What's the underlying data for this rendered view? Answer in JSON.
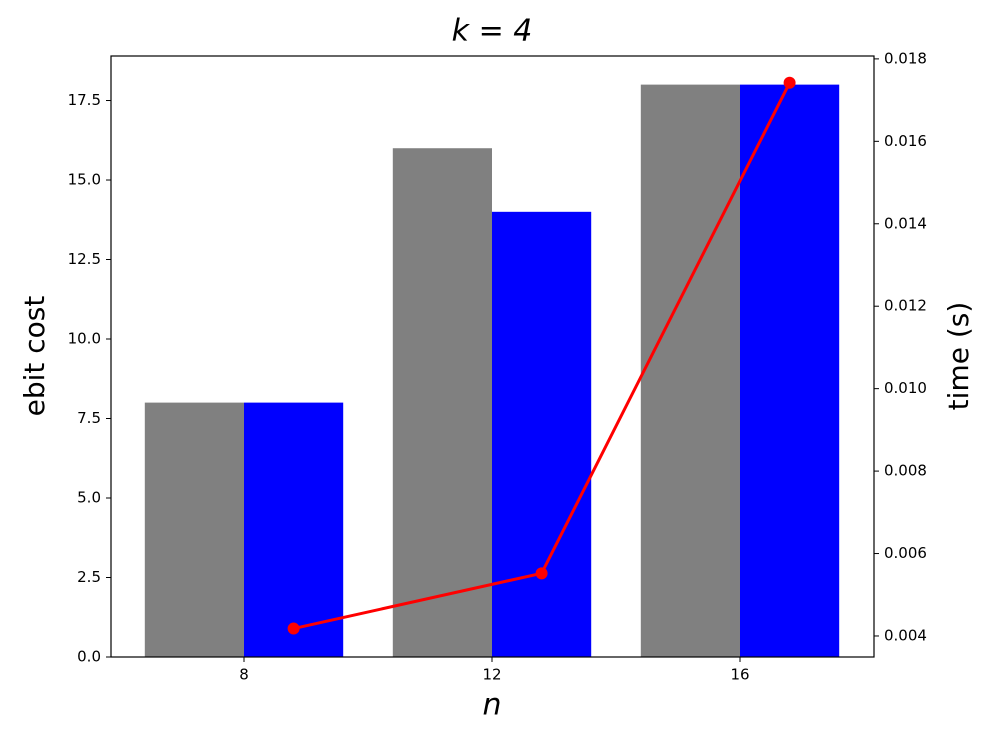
{
  "chart_data": {
    "type": "bar",
    "title": "k = 4",
    "x_label": "n",
    "y_label": "ebit cost",
    "y2_label": "time (s)",
    "categories": [
      "8",
      "12",
      "16"
    ],
    "series": [
      {
        "color": "#808080",
        "values": [
          8,
          16,
          18
        ]
      },
      {
        "color": "#0000ff",
        "values": [
          8,
          14,
          18
        ]
      },
      {
        "color": "#ff0000",
        "axis": "y2",
        "type": "line",
        "values": [
          0.00418,
          0.00552,
          0.01742
        ]
      }
    ],
    "ylim": [
      0,
      18.9
    ],
    "yticks": [
      {
        "value": 0,
        "label": "0.0"
      },
      2.5,
      {
        "value": 5,
        "label": "5.0"
      },
      7.5,
      {
        "value": 10,
        "label": "10.0"
      },
      12.5,
      {
        "value": 15,
        "label": "15.0"
      },
      17.5
    ],
    "y2lim": [
      0.00349,
      0.01807
    ],
    "y2ticks": [
      0.004,
      0.006,
      0.008,
      {
        "value": 0.01,
        "label": "0.010"
      },
      0.012,
      0.014,
      0.016,
      0.018
    ]
  }
}
